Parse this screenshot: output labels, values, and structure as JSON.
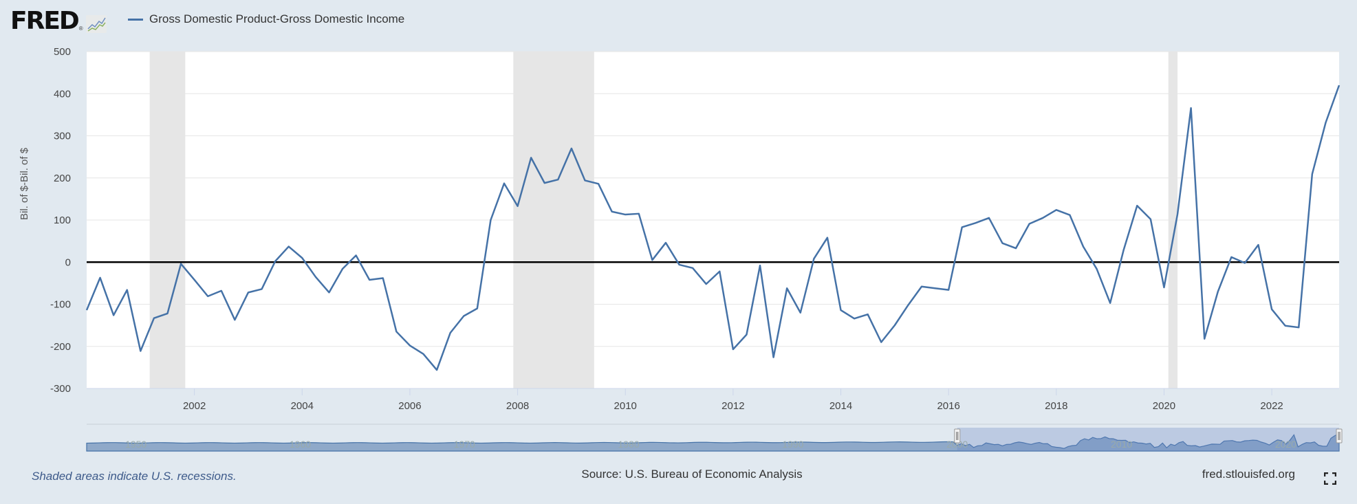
{
  "header": {
    "logo": "FRED",
    "legend_label": "Gross Domestic Product-Gross Domestic Income"
  },
  "footer": {
    "note": "Shaded areas indicate U.S. recessions.",
    "source": "Source: U.S. Bureau of Economic Analysis",
    "url": "fred.stlouisfed.org",
    "fullscreen_icon": "fullscreen-icon"
  },
  "colors": {
    "series": "#4572a7",
    "recession": "#e6e6e6",
    "background": "#e1e9f0"
  },
  "chart_data": {
    "type": "line",
    "title": "Gross Domestic Product-Gross Domestic Income",
    "xlabel": "",
    "ylabel": "Bil. of $-Bil. of $",
    "ylim": [
      -300,
      500
    ],
    "xlim": [
      2000.0,
      2023.25
    ],
    "yticks": [
      "500",
      "400",
      "300",
      "200",
      "100",
      "0",
      "-100",
      "-200",
      "-300"
    ],
    "xticks": [
      "2002",
      "2004",
      "2006",
      "2008",
      "2010",
      "2012",
      "2014",
      "2016",
      "2018",
      "2020",
      "2022"
    ],
    "grid": true,
    "frequency": "quarterly",
    "start": "2000-Q1",
    "series": [
      {
        "name": "Gross Domestic Product-Gross Domestic Income",
        "values": [
          -114,
          -37,
          -126,
          -66,
          -211,
          -133,
          -122,
          -4,
          -42,
          -81,
          -68,
          -137,
          -72,
          -64,
          2,
          37,
          10,
          -35,
          -72,
          -16,
          16,
          -42,
          -38,
          -165,
          -198,
          -218,
          -256,
          -168,
          -128,
          -110,
          100,
          187,
          133,
          248,
          188,
          196,
          270,
          194,
          186,
          120,
          113,
          115,
          5,
          46,
          -6,
          -14,
          -52,
          -22,
          -207,
          -172,
          -8,
          -226,
          -62,
          -120,
          8,
          58,
          -114,
          -134,
          -124,
          -190,
          -150,
          -102,
          -58,
          -62,
          -66,
          83,
          93,
          105,
          45,
          33,
          91,
          105,
          124,
          112,
          37,
          -16,
          -97,
          29,
          134,
          102,
          -60,
          114,
          366,
          -182,
          -70,
          12,
          -2,
          41,
          -112,
          -151,
          -155,
          209,
          331,
          420
        ]
      }
    ],
    "recessions": [
      [
        2001.17,
        2001.83
      ],
      [
        2007.92,
        2009.42
      ],
      [
        2020.08,
        2020.25
      ]
    ],
    "navigator": {
      "range": [
        1947,
        2023.25
      ],
      "labels": [
        "1950",
        "1960",
        "1970",
        "1980",
        "1990",
        "2000",
        "2010",
        "2020"
      ],
      "selected": [
        2000.0,
        2023.25
      ]
    }
  }
}
